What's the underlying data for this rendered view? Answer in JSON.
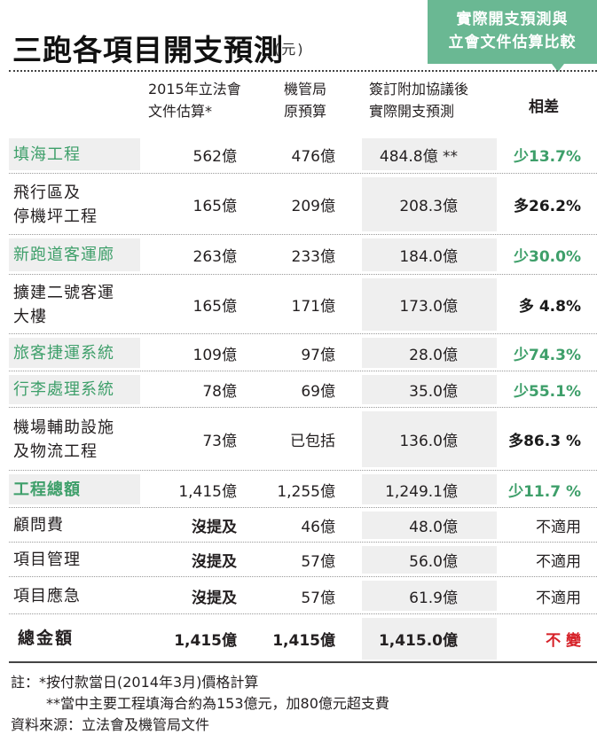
{
  "title": "三跑各項目開支預測",
  "unit": "(元)",
  "badge": {
    "line1": "實際開支預測與",
    "line2": "立會文件估算比較"
  },
  "headers": {
    "col_a": [
      "2015年立法會",
      "文件估算*"
    ],
    "col_b": [
      "機管局",
      "原預算"
    ],
    "col_c": [
      "簽訂附加協議後",
      "實際開支預測"
    ],
    "col_d": "相差"
  },
  "chart_data": {
    "type": "table",
    "title": "三跑各項目開支預測",
    "columns": [
      "項目",
      "2015年立法會文件估算*",
      "機管局原預算",
      "簽訂附加協議後實際開支預測",
      "相差"
    ],
    "rows": [
      [
        "填海工程",
        "562億",
        "476億",
        "484.8億 **",
        "少13.7%"
      ],
      [
        "飛行區及停機坪工程",
        "165億",
        "209億",
        "208.3億",
        "多26.2%"
      ],
      [
        "新跑道客運廊",
        "263億",
        "233億",
        "184.0億",
        "少30.0%"
      ],
      [
        "擴建二號客運大樓",
        "165億",
        "171億",
        "173.0億",
        "多 4.8%"
      ],
      [
        "旅客捷運系統",
        "109億",
        "97億",
        "28.0億",
        "少74.3%"
      ],
      [
        "行李處理系統",
        "78億",
        "69億",
        "35.0億",
        "少55.1%"
      ],
      [
        "機場輔助設施及物流工程",
        "73億",
        "已包括",
        "136.0億",
        "多86.3 %"
      ],
      [
        "工程總額",
        "1,415億",
        "1,255億",
        "1,249.1億",
        "少11.7 %"
      ],
      [
        "顧問費",
        "沒提及",
        "46億",
        "48.0億",
        "不適用"
      ],
      [
        "項目管理",
        "沒提及",
        "57億",
        "56.0億",
        "不適用"
      ],
      [
        "項目應急",
        "沒提及",
        "57億",
        "61.9億",
        "不適用"
      ],
      [
        "總金額",
        "1,415億",
        "1,415億",
        "1,415.0億",
        "不 變"
      ]
    ]
  },
  "rows": [
    {
      "label": [
        "填海工程"
      ],
      "a": "562億",
      "b": "476億",
      "c": "484.8億 **",
      "d": "少13.7%",
      "label_color": "green",
      "d_style": "green"
    },
    {
      "label": [
        "飛行區及",
        "停機坪工程"
      ],
      "a": "165億",
      "b": "209億",
      "c": "208.3億",
      "d": "多26.2%",
      "label_color": "black",
      "d_style": "black"
    },
    {
      "label": [
        "新跑道客運廊"
      ],
      "a": "263億",
      "b": "233億",
      "c": "184.0億",
      "d": "少30.0%",
      "label_color": "green",
      "d_style": "green"
    },
    {
      "label": [
        "擴建二號客運",
        "大樓"
      ],
      "a": "165億",
      "b": "171億",
      "c": "173.0億",
      "d": "多 4.8%",
      "label_color": "black",
      "d_style": "black"
    },
    {
      "label": [
        "旅客捷運系統"
      ],
      "a": "109億",
      "b": "97億",
      "c": "28.0億",
      "d": "少74.3%",
      "label_color": "green",
      "d_style": "green"
    },
    {
      "label": [
        "行李處理系統"
      ],
      "a": "78億",
      "b": "69億",
      "c": "35.0億",
      "d": "少55.1%",
      "label_color": "green",
      "d_style": "green"
    },
    {
      "label": [
        "機場輔助設施",
        "及物流工程"
      ],
      "a": "73億",
      "b": "已包括",
      "c": "136.0億",
      "d": "多86.3 %",
      "label_color": "black",
      "d_style": "black"
    },
    {
      "label": [
        "工程總額"
      ],
      "a": "1,415億",
      "b": "1,255億",
      "c": "1,249.1億",
      "d": "少11.7 %",
      "label_color": "green-bold",
      "d_style": "green"
    },
    {
      "label": [
        "顧問費"
      ],
      "a": "沒提及",
      "b": "46億",
      "c": "48.0億",
      "d": "不適用",
      "label_color": "black",
      "d_style": "plain",
      "a_bold": true
    },
    {
      "label": [
        "項目管理"
      ],
      "a": "沒提及",
      "b": "57億",
      "c": "56.0億",
      "d": "不適用",
      "label_color": "black",
      "d_style": "plain",
      "a_bold": true
    },
    {
      "label": [
        "項目應急"
      ],
      "a": "沒提及",
      "b": "57億",
      "c": "61.9億",
      "d": "不適用",
      "label_color": "black",
      "d_style": "plain",
      "a_bold": true
    },
    {
      "label": [
        "總金額"
      ],
      "a": "1,415億",
      "b": "1,415億",
      "c": "1,415.0億",
      "d": "不 變",
      "label_color": "total",
      "d_style": "red",
      "all_bold": true
    }
  ],
  "notes": [
    "註：*按付款當日(2014年3月)價格計算",
    "**當中主要工程填海合約為153億元，加80億元超支費",
    "資料來源：立法會及機管局文件"
  ],
  "colors": {
    "green": "#3e9f6a",
    "badge": "#6ab893",
    "red": "#d62027",
    "shade": "#efefef"
  }
}
